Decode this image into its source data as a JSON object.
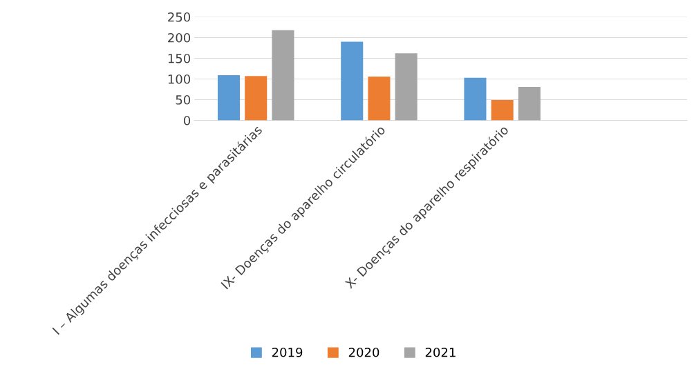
{
  "chart_data": {
    "type": "bar",
    "categories": [
      "I – Algumas doenças infecciosas e parasitárias",
      "IX- Doenças do aparelho circulatório",
      "X- Doenças do aparelho respiratório",
      null
    ],
    "series": [
      {
        "name": "2019",
        "color": "#5b9bd5",
        "values": [
          109,
          190,
          103,
          null
        ]
      },
      {
        "name": "2020",
        "color": "#ed7d31",
        "values": [
          107,
          106,
          49,
          null
        ]
      },
      {
        "name": "2021",
        "color": "#a5a5a5",
        "values": [
          218,
          162,
          81,
          null
        ]
      }
    ],
    "ylim": [
      0,
      250
    ],
    "yticks": [
      0,
      50,
      100,
      150,
      200,
      250
    ],
    "grid": "y",
    "legend": "bottom"
  }
}
